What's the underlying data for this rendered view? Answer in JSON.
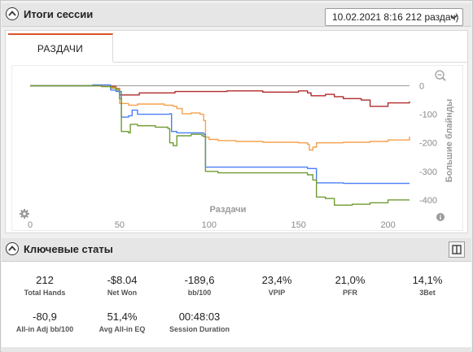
{
  "session_panel": {
    "title": "Итоги сессии",
    "session_select_value": "10.02.2021 8:16 212 раздач)",
    "tabs": [
      {
        "label": "РАЗДАЧИ"
      }
    ]
  },
  "chart_data": {
    "type": "line",
    "xlabel": "Раздачи",
    "ylabel": "Большие блайнды",
    "x_ticks": [
      "0",
      "50",
      "100",
      "150",
      "200"
    ],
    "y_ticks": [
      "0",
      "-100",
      "-200",
      "-300",
      "-400"
    ],
    "xlim": [
      0,
      212
    ],
    "ylim": [
      -460,
      30
    ],
    "grid": false,
    "series": [
      {
        "color": "#b22a2a",
        "points": [
          [
            0,
            0
          ],
          [
            40,
            -2
          ],
          [
            48,
            -10
          ],
          [
            50,
            -32
          ],
          [
            60,
            -32
          ],
          [
            61,
            -25
          ],
          [
            80,
            -25
          ],
          [
            81,
            -20
          ],
          [
            100,
            -20
          ],
          [
            110,
            -18
          ],
          [
            130,
            -22
          ],
          [
            150,
            -18
          ],
          [
            155,
            -25
          ],
          [
            157,
            -35
          ],
          [
            165,
            -30
          ],
          [
            170,
            -38
          ],
          [
            175,
            -45
          ],
          [
            185,
            -50
          ],
          [
            190,
            -72
          ],
          [
            200,
            -60
          ],
          [
            212,
            -55
          ]
        ]
      },
      {
        "color": "#f5a04d",
        "points": [
          [
            0,
            0
          ],
          [
            45,
            -5
          ],
          [
            48,
            -12
          ],
          [
            50,
            -62
          ],
          [
            55,
            -68
          ],
          [
            60,
            -64
          ],
          [
            75,
            -68
          ],
          [
            80,
            -72
          ],
          [
            82,
            -80
          ],
          [
            85,
            -98
          ],
          [
            90,
            -95
          ],
          [
            95,
            -100
          ],
          [
            97,
            -122
          ],
          [
            98,
            -180
          ],
          [
            100,
            -188
          ],
          [
            105,
            -192
          ],
          [
            115,
            -195
          ],
          [
            130,
            -198
          ],
          [
            150,
            -200
          ],
          [
            155,
            -205
          ],
          [
            156,
            -225
          ],
          [
            158,
            -215
          ],
          [
            160,
            -200
          ],
          [
            175,
            -198
          ],
          [
            190,
            -195
          ],
          [
            200,
            -190
          ],
          [
            212,
            -178
          ]
        ]
      },
      {
        "color": "#4a7ef5",
        "points": [
          [
            0,
            0
          ],
          [
            35,
            3
          ],
          [
            44,
            3
          ],
          [
            45,
            -15
          ],
          [
            48,
            -20
          ],
          [
            50,
            -20
          ],
          [
            51,
            -110
          ],
          [
            55,
            -105
          ],
          [
            57,
            -85
          ],
          [
            60,
            -100
          ],
          [
            75,
            -100
          ],
          [
            78,
            -98
          ],
          [
            79,
            -160
          ],
          [
            82,
            -165
          ],
          [
            90,
            -165
          ],
          [
            96,
            -165
          ],
          [
            97,
            -170
          ],
          [
            98,
            -285
          ],
          [
            120,
            -285
          ],
          [
            150,
            -285
          ],
          [
            155,
            -290
          ],
          [
            160,
            -340
          ],
          [
            175,
            -342
          ],
          [
            212,
            -342
          ]
        ]
      },
      {
        "color": "#6f9b30",
        "points": [
          [
            0,
            0
          ],
          [
            40,
            -3
          ],
          [
            45,
            -8
          ],
          [
            48,
            -15
          ],
          [
            50,
            -45
          ],
          [
            51,
            -160
          ],
          [
            55,
            -165
          ],
          [
            56,
            -135
          ],
          [
            60,
            -140
          ],
          [
            70,
            -145
          ],
          [
            77,
            -150
          ],
          [
            78,
            -200
          ],
          [
            80,
            -210
          ],
          [
            82,
            -175
          ],
          [
            90,
            -170
          ],
          [
            96,
            -175
          ],
          [
            97,
            -178
          ],
          [
            98,
            -300
          ],
          [
            105,
            -305
          ],
          [
            120,
            -305
          ],
          [
            150,
            -305
          ],
          [
            155,
            -312
          ],
          [
            158,
            -330
          ],
          [
            160,
            -390
          ],
          [
            165,
            -395
          ],
          [
            170,
            -418
          ],
          [
            180,
            -415
          ],
          [
            190,
            -410
          ],
          [
            200,
            -400
          ],
          [
            212,
            -400
          ]
        ]
      }
    ]
  },
  "stats_panel": {
    "title": "Ключевые статы",
    "stats": [
      {
        "value": "212",
        "label": "Total Hands"
      },
      {
        "value": "-$8.04",
        "label": "Net Won"
      },
      {
        "value": "-189,6",
        "label": "bb/100"
      },
      {
        "value": "23,4%",
        "label": "VPIP"
      },
      {
        "value": "21,0%",
        "label": "PFR"
      },
      {
        "value": "14,1%",
        "label": "3Bet"
      },
      {
        "value": "-80,9",
        "label": "All-in Adj bb/100"
      },
      {
        "value": "51,4%",
        "label": "Avg All-in EQ"
      },
      {
        "value": "00:48:03",
        "label": "Session Duration"
      }
    ]
  }
}
